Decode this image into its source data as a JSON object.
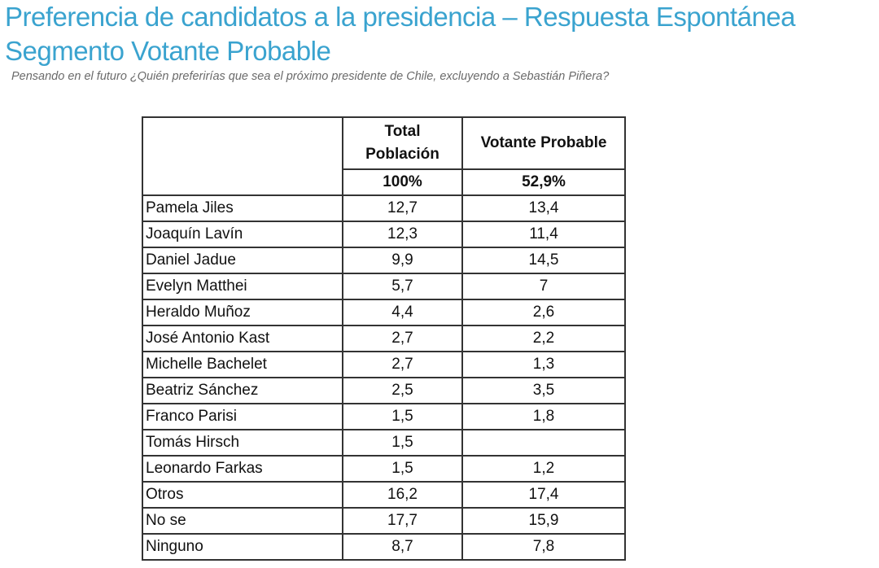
{
  "title_line1": "Preferencia de candidatos a la presidencia – Respuesta Espontánea",
  "title_line2": "Segmento Votante Probable",
  "subtitle": "Pensando en el futuro ¿Quién preferirías que sea el próximo presidente de Chile, excluyendo a Sebastián Piñera?",
  "table": {
    "headers": [
      "Total Población",
      "Votante Probable"
    ],
    "header_totals": [
      "100%",
      "52,9%"
    ],
    "rows": [
      {
        "name": "Pamela Jiles",
        "total": "12,7",
        "votante": "13,4"
      },
      {
        "name": "Joaquín Lavín",
        "total": "12,3",
        "votante": "11,4"
      },
      {
        "name": "Daniel Jadue",
        "total": "9,9",
        "votante": "14,5"
      },
      {
        "name": "Evelyn Matthei",
        "total": "5,7",
        "votante": "7"
      },
      {
        "name": "Heraldo Muñoz",
        "total": "4,4",
        "votante": "2,6"
      },
      {
        "name": "José Antonio Kast",
        "total": "2,7",
        "votante": "2,2"
      },
      {
        "name": "Michelle Bachelet",
        "total": "2,7",
        "votante": "1,3"
      },
      {
        "name": "Beatriz Sánchez",
        "total": "2,5",
        "votante": "3,5"
      },
      {
        "name": "Franco Parisi",
        "total": "1,5",
        "votante": "1,8"
      },
      {
        "name": "Tomás Hirsch",
        "total": "1,5",
        "votante": ""
      },
      {
        "name": "Leonardo Farkas",
        "total": "1,5",
        "votante": "1,2"
      },
      {
        "name": "Otros",
        "total": "16,2",
        "votante": "17,4"
      },
      {
        "name": "No se",
        "total": "17,7",
        "votante": "15,9"
      },
      {
        "name": "Ninguno",
        "total": "8,7",
        "votante": "7,8"
      }
    ]
  }
}
